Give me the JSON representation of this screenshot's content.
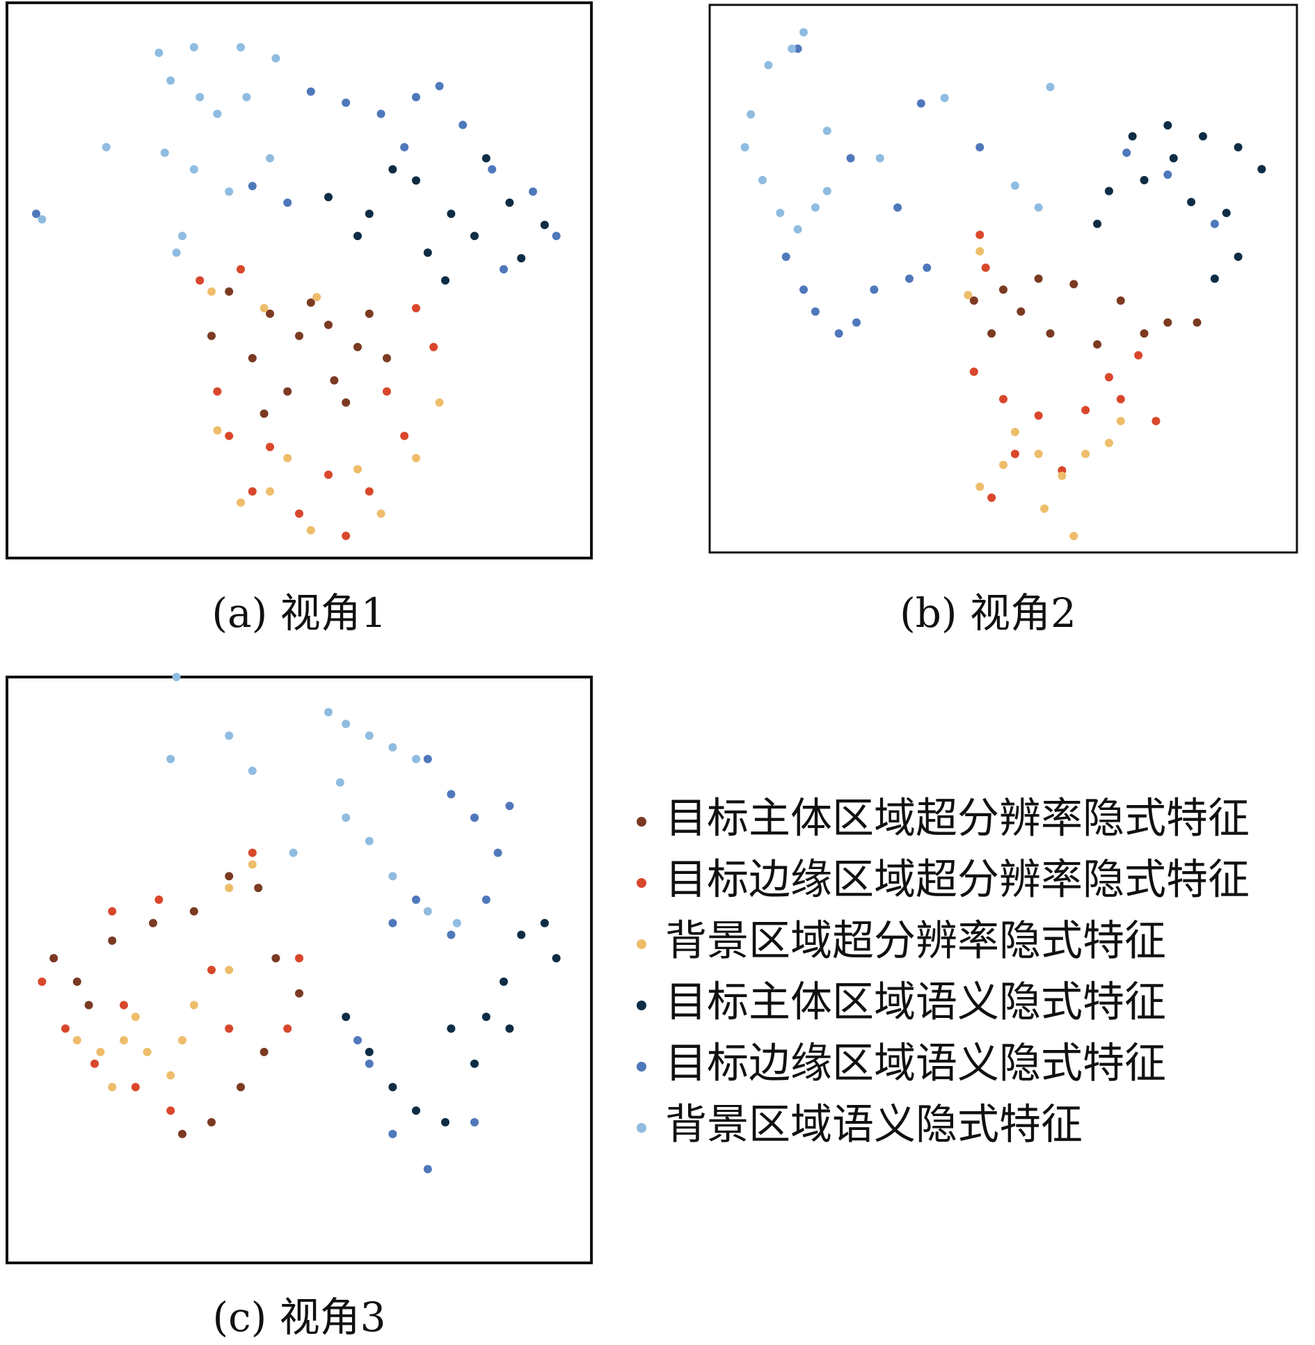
{
  "chart_data": [
    {
      "type": "scatter",
      "title": "(a) 视角1",
      "xlim": [
        0,
        100
      ],
      "ylim": [
        0,
        100
      ],
      "series": [
        {
          "color": "#7b3a22",
          "x": [
            38,
            45,
            50,
            55,
            60,
            65,
            42,
            48,
            56,
            62,
            35,
            52,
            58,
            44
          ],
          "y": [
            48,
            44,
            40,
            42,
            38,
            36,
            36,
            30,
            32,
            44,
            40,
            46,
            28,
            26
          ]
        },
        {
          "color": "#d9472b",
          "x": [
            33,
            40,
            70,
            73,
            36,
            45,
            55,
            62,
            68,
            50,
            58,
            42,
            65,
            38
          ],
          "y": [
            50,
            52,
            45,
            38,
            30,
            20,
            15,
            12,
            22,
            8,
            4,
            12,
            30,
            22
          ]
        },
        {
          "color": "#eebd6b",
          "x": [
            35,
            44,
            53,
            74,
            70,
            64,
            52,
            45,
            40,
            60,
            48,
            36
          ],
          "y": [
            48,
            45,
            47,
            28,
            18,
            8,
            5,
            12,
            10,
            16,
            18,
            23
          ]
        },
        {
          "color": "#0e2d45",
          "x": [
            55,
            62,
            70,
            76,
            80,
            86,
            92,
            72,
            66,
            82,
            88,
            75,
            60
          ],
          "y": [
            65,
            62,
            68,
            62,
            58,
            64,
            60,
            55,
            70,
            72,
            54,
            50,
            58
          ]
        },
        {
          "color": "#4f78bb",
          "x": [
            52,
            58,
            64,
            70,
            74,
            78,
            83,
            90,
            94,
            42,
            48,
            85,
            68,
            5
          ],
          "y": [
            84,
            82,
            80,
            83,
            85,
            78,
            70,
            66,
            58,
            67,
            64,
            52,
            74,
            62
          ]
        },
        {
          "color": "#8fbce0",
          "x": [
            26,
            32,
            40,
            46,
            28,
            33,
            36,
            41,
            27,
            32,
            38,
            45,
            17,
            6,
            30,
            29
          ],
          "y": [
            91,
            92,
            92,
            90,
            86,
            83,
            80,
            83,
            73,
            70,
            66,
            72,
            74,
            61,
            58,
            55
          ]
        }
      ]
    },
    {
      "type": "scatter",
      "title": "(b) 视角2",
      "xlim": [
        0,
        100
      ],
      "ylim": [
        0,
        100
      ],
      "series": [
        {
          "color": "#7b3a22",
          "x": [
            45,
            50,
            56,
            62,
            70,
            78,
            83,
            48,
            58,
            66,
            74,
            53
          ],
          "y": [
            46,
            48,
            50,
            49,
            46,
            42,
            42,
            40,
            40,
            38,
            40,
            44
          ]
        },
        {
          "color": "#d9472b",
          "x": [
            46,
            47,
            45,
            50,
            56,
            64,
            70,
            76,
            52,
            60,
            48,
            68,
            73
          ],
          "y": [
            58,
            52,
            33,
            28,
            25,
            26,
            28,
            24,
            18,
            15,
            10,
            32,
            36
          ]
        },
        {
          "color": "#eebd6b",
          "x": [
            46,
            44,
            52,
            56,
            60,
            64,
            68,
            57,
            62,
            46,
            50,
            70
          ],
          "y": [
            55,
            47,
            22,
            18,
            14,
            18,
            20,
            8,
            3,
            12,
            16,
            24
          ]
        },
        {
          "color": "#0e2d45",
          "x": [
            72,
            78,
            84,
            90,
            94,
            68,
            74,
            82,
            88,
            66,
            90,
            86,
            79
          ],
          "y": [
            76,
            78,
            76,
            74,
            70,
            66,
            68,
            64,
            62,
            60,
            54,
            50,
            72
          ]
        },
        {
          "color": "#4f78bb",
          "x": [
            13,
            16,
            18,
            22,
            25,
            28,
            34,
            37,
            15,
            36,
            46,
            32,
            24,
            78,
            86,
            71
          ],
          "y": [
            54,
            48,
            44,
            40,
            42,
            48,
            50,
            52,
            92,
            82,
            74,
            63,
            72,
            69,
            60,
            73
          ]
        },
        {
          "color": "#8fbce0",
          "x": [
            10,
            14,
            16,
            7,
            6,
            9,
            12,
            15,
            18,
            20,
            40,
            58,
            52,
            56,
            20,
            29
          ],
          "y": [
            89,
            92,
            95,
            80,
            74,
            68,
            62,
            59,
            63,
            66,
            83,
            85,
            67,
            63,
            77,
            72
          ]
        }
      ]
    },
    {
      "type": "scatter",
      "title": "(c) 视角3",
      "xlim": [
        0,
        100
      ],
      "ylim": [
        0,
        100
      ],
      "series": [
        {
          "name": "目标主体区域超分辨率隐式特征",
          "color": "#7b3a22",
          "x": [
            8,
            12,
            18,
            25,
            32,
            38,
            43,
            46,
            50,
            40,
            35,
            30,
            44,
            14
          ],
          "y": [
            52,
            48,
            55,
            58,
            60,
            66,
            64,
            52,
            46,
            30,
            24,
            22,
            36,
            44
          ]
        },
        {
          "name": "目标边缘区域超分辨率隐式特征",
          "color": "#d9472b",
          "x": [
            6,
            10,
            15,
            22,
            28,
            48,
            50,
            42,
            35,
            20,
            38,
            26,
            18
          ],
          "y": [
            48,
            40,
            34,
            30,
            26,
            40,
            52,
            70,
            50,
            44,
            40,
            62,
            60
          ]
        },
        {
          "name": "背景区域超分辨率隐式特征",
          "color": "#eebd6b",
          "x": [
            12,
            16,
            20,
            24,
            28,
            22,
            30,
            32,
            38,
            42,
            38,
            18
          ],
          "y": [
            38,
            36,
            38,
            36,
            32,
            42,
            38,
            44,
            64,
            68,
            50,
            30
          ]
        },
        {
          "name": "目标主体区域语义隐式特征",
          "color": "#0e2d45",
          "x": [
            58,
            62,
            66,
            70,
            75,
            80,
            85,
            88,
            92,
            94,
            82,
            86,
            76
          ],
          "y": [
            42,
            36,
            30,
            26,
            24,
            34,
            48,
            56,
            58,
            52,
            42,
            40,
            40
          ]
        },
        {
          "name": "目标边缘区域语义隐式特征",
          "color": "#4f78bb",
          "x": [
            72,
            76,
            80,
            84,
            82,
            76,
            70,
            66,
            62,
            66,
            72,
            80,
            86,
            60
          ],
          "y": [
            86,
            80,
            76,
            70,
            62,
            56,
            62,
            58,
            34,
            22,
            16,
            24,
            78,
            38
          ]
        },
        {
          "name": "背景区域语义隐式特征",
          "color": "#8fbce0",
          "x": [
            55,
            58,
            62,
            66,
            70,
            57,
            58,
            62,
            66,
            72,
            77,
            28,
            38,
            42,
            29,
            49
          ],
          "y": [
            94,
            92,
            90,
            88,
            86,
            82,
            76,
            72,
            66,
            60,
            58,
            86,
            90,
            84,
            100,
            70
          ]
        }
      ]
    }
  ]
}
